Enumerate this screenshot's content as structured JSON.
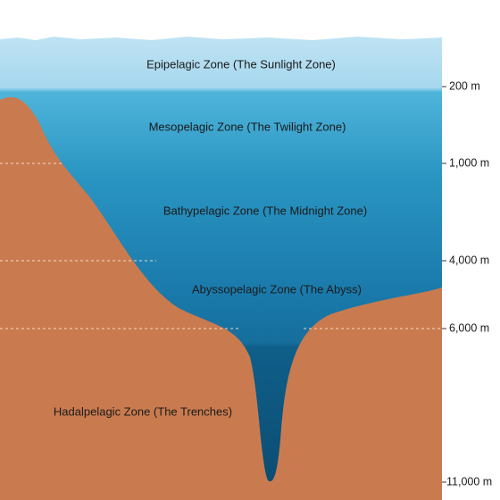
{
  "zones": [
    "Epipelagic Zone (The Sunlight Zone)",
    "Mesopelagic Zone (The Twilight Zone)",
    "Bathypelagic Zone (The Midnight Zone)",
    "Abyssopelagic Zone (The Abyss)",
    "Hadalpelagic Zone (The Trenches)"
  ],
  "depths": [
    "200 m",
    "1,000 m",
    "4,000 m",
    "6,000 m",
    "11,000 m"
  ]
}
